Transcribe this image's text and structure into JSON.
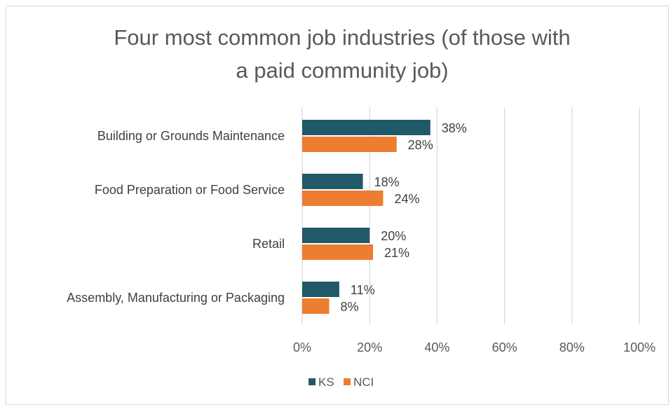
{
  "chart_data": {
    "type": "bar",
    "orientation": "horizontal",
    "title": "Four most common job industries (of those with a paid community job)",
    "title_lines": [
      "Four most common job industries (of those with",
      "a paid community job)"
    ],
    "categories": [
      "Building or Grounds Maintenance",
      "Food Preparation or Food Service",
      "Retail",
      "Assembly, Manufacturing or Packaging"
    ],
    "series": [
      {
        "name": "KS",
        "values": [
          38,
          18,
          20,
          11
        ],
        "labels": [
          "38%",
          "18%",
          "20%",
          "11%"
        ],
        "color": "#225968"
      },
      {
        "name": "NCI",
        "values": [
          28,
          24,
          21,
          8
        ],
        "labels": [
          "28%",
          "24%",
          "21%",
          "8%"
        ],
        "color": "#ed7d31"
      }
    ],
    "xlim": [
      0,
      100
    ],
    "x_ticks": [
      0,
      20,
      40,
      60,
      80,
      100
    ],
    "x_tick_labels": [
      "0%",
      "20%",
      "40%",
      "60%",
      "80%",
      "100%"
    ],
    "xlabel": "",
    "ylabel": "",
    "grid": true,
    "legend_position": "bottom"
  }
}
